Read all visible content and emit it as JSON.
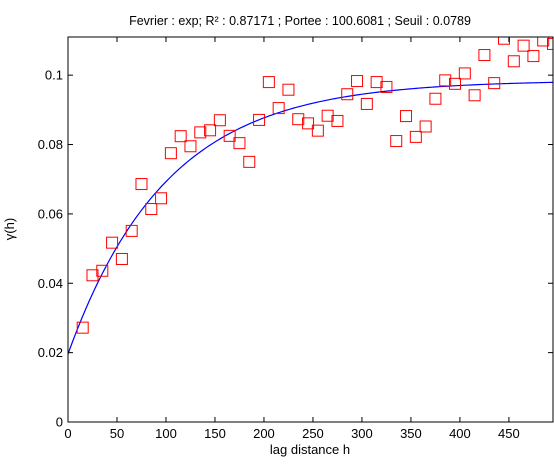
{
  "chart_data": {
    "type": "scatter",
    "title": "Fevrier : exp;  R² : 0.87171 ; Portee : 100.6081 ; Seuil : 0.0789",
    "xlabel": "lag distance h",
    "ylabel": "γ(h)",
    "xlim": [
      0,
      495
    ],
    "ylim": [
      0,
      0.111
    ],
    "xticks": [
      0,
      50,
      100,
      150,
      200,
      250,
      300,
      350,
      400,
      450
    ],
    "yticks": [
      0,
      0.02,
      0.04,
      0.06,
      0.08,
      0.1
    ],
    "xtick_labels": [
      "0",
      "50",
      "100",
      "150",
      "200",
      "250",
      "300",
      "350",
      "400",
      "450"
    ],
    "ytick_labels": [
      "0",
      "0.02",
      "0.04",
      "0.06",
      "0.08",
      "0.1"
    ],
    "grid": false,
    "legend": "none",
    "colors": {
      "points": "#ff0000",
      "fit": "#0000ff",
      "axes": "#000000"
    },
    "series": [
      {
        "type": "scatter",
        "marker": "square",
        "x": [
          15,
          25,
          35,
          45,
          55,
          65,
          75,
          85,
          95,
          105,
          115,
          125,
          135,
          145,
          155,
          165,
          175,
          185,
          195,
          205,
          215,
          225,
          235,
          245,
          255,
          265,
          275,
          285,
          295,
          305,
          315,
          325,
          335,
          345,
          355,
          365,
          375,
          385,
          395,
          405,
          415,
          425,
          435,
          445,
          455,
          465,
          475,
          485,
          495
        ],
        "y": [
          0.0272,
          0.0423,
          0.0436,
          0.0517,
          0.047,
          0.0551,
          0.0686,
          0.0614,
          0.0645,
          0.0775,
          0.0824,
          0.0795,
          0.0835,
          0.0841,
          0.087,
          0.0825,
          0.0804,
          0.075,
          0.0871,
          0.098,
          0.0905,
          0.0958,
          0.0873,
          0.0861,
          0.084,
          0.0883,
          0.0868,
          0.0945,
          0.0983,
          0.0917,
          0.098,
          0.0966,
          0.081,
          0.0882,
          0.0822,
          0.0852,
          0.0932,
          0.0985,
          0.0975,
          0.1005,
          0.0942,
          0.1058,
          0.0977,
          0.1105,
          0.104,
          0.1085,
          0.1055,
          0.11,
          0.109
        ]
      },
      {
        "type": "line",
        "model": "exponential",
        "nugget": 0.0196,
        "sill": 0.0789,
        "range": 100.6081,
        "x_range": [
          0,
          495
        ]
      }
    ]
  }
}
